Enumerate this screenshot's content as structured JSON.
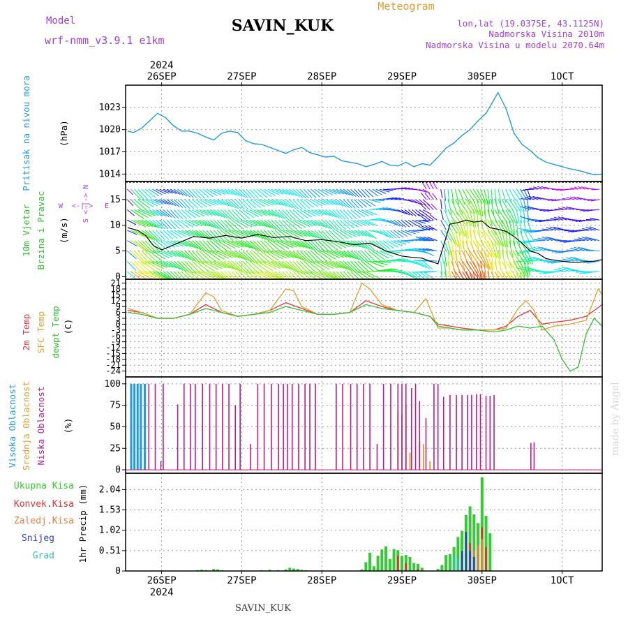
{
  "header": {
    "model_label": "Model",
    "model_value": "wrf-nmm_v3.9.1  e1km",
    "station": "SAVIN_KUK",
    "product": "Meteogram",
    "location": "lon,lat (19.0375E, 43.1125N)",
    "elevation": "Nadmorska Visina 2010m",
    "model_elevation": "Nadmorska Visina u modelu 2070.64m"
  },
  "footer": {
    "station": "SAVIN_KUK",
    "credit": "made by Angel"
  },
  "colors": {
    "pressure": "#1e9be0",
    "wind_speed": "#000000",
    "gust": "#e03030",
    "t2m": "#e83535",
    "tsfc": "#e0a030",
    "dewpt": "#30c030",
    "cloud_high": "#1e9be0",
    "cloud_mid": "#e0a030",
    "cloud_low": "#c01a8a",
    "precip_total": "#33cc33",
    "precip_conv": "#e03030",
    "precip_frozen": "#e88040",
    "precip_snow": "#3040c0",
    "precip_graupel": "#30c0b0",
    "header_purple": "#a040e0",
    "header_orange": "#e0a030"
  },
  "chart_data": [
    {
      "type": "line",
      "title": "Pritisak na nivou mora",
      "ylabel": "(hPa)",
      "ylim": [
        1013,
        1026
      ],
      "yticks": [
        1014,
        1017,
        1020,
        1023
      ],
      "x_days": [
        {
          "year": "2024",
          "label": "26SEP"
        },
        {
          "year": "",
          "label": "27SEP"
        },
        {
          "year": "",
          "label": "28SEP"
        },
        {
          "year": "",
          "label": "29SEP"
        },
        {
          "year": "",
          "label": "30SEP"
        },
        {
          "year": "",
          "label": "1OCT"
        }
      ],
      "series": [
        {
          "name": "Pritisak na nivou mora",
          "x": [
            25.58,
            25.65,
            25.75,
            25.85,
            25.95,
            26.05,
            26.15,
            26.25,
            26.35,
            26.45,
            26.55,
            26.65,
            26.75,
            26.85,
            26.95,
            27.05,
            27.15,
            27.25,
            27.35,
            27.45,
            27.55,
            27.65,
            27.75,
            27.85,
            27.95,
            28.05,
            28.15,
            28.25,
            28.35,
            28.45,
            28.55,
            28.65,
            28.75,
            28.85,
            28.95,
            29.05,
            29.15,
            29.25,
            29.35,
            29.45,
            29.55,
            29.65,
            29.75,
            29.85,
            29.95,
            30.05,
            30.12,
            30.2,
            30.3,
            30.4,
            30.5,
            30.6,
            30.7,
            30.8,
            30.9,
            31.0,
            31.1,
            31.2,
            31.3,
            31.4,
            31.5
          ],
          "y": [
            1019.8,
            1019.6,
            1020.2,
            1021.2,
            1022.2,
            1021.6,
            1020.5,
            1019.8,
            1019.8,
            1019.5,
            1019.0,
            1018.6,
            1019.5,
            1019.8,
            1019.6,
            1018.5,
            1018.1,
            1018.0,
            1017.6,
            1017.2,
            1016.8,
            1017.3,
            1017.6,
            1016.9,
            1016.6,
            1016.3,
            1016.4,
            1015.8,
            1015.6,
            1015.4,
            1015.0,
            1015.3,
            1015.7,
            1015.2,
            1015.1,
            1015.6,
            1015.0,
            1015.4,
            1015.2,
            1016.3,
            1017.5,
            1018.2,
            1019.2,
            1020.0,
            1021.2,
            1022.2,
            1023.5,
            1025.0,
            1022.8,
            1019.5,
            1018.0,
            1017.2,
            1016.2,
            1015.6,
            1015.3,
            1015.0,
            1014.7,
            1014.5,
            1014.2,
            1013.9,
            1014.0
          ]
        }
      ]
    },
    {
      "type": "line",
      "title": "10m Vjetar Brzina i Pravac",
      "ylabel": "(m/s)",
      "compass": {
        "n": "N",
        "s": "S",
        "w": "W",
        "e": "E"
      },
      "ylim": [
        -0.5,
        18.5
      ],
      "yticks": [
        0,
        5,
        10,
        15
      ],
      "series": [
        {
          "name": "Brzina",
          "x": [
            25.58,
            25.7,
            25.8,
            25.9,
            26.0,
            26.2,
            26.4,
            26.6,
            26.8,
            27.0,
            27.2,
            27.4,
            27.6,
            27.8,
            28.0,
            28.2,
            28.4,
            28.6,
            28.8,
            29.0,
            29.1,
            29.25,
            29.35,
            29.45,
            29.5,
            29.6,
            29.7,
            29.8,
            29.9,
            30.0,
            30.1,
            30.2,
            30.3,
            30.4,
            30.5,
            30.6,
            30.7,
            30.8,
            30.9,
            31.0,
            31.1,
            31.2,
            31.3,
            31.4,
            31.5
          ],
          "y": [
            9.5,
            9.0,
            8.0,
            6.0,
            5.2,
            6.5,
            7.8,
            7.5,
            8.0,
            7.5,
            8.2,
            7.6,
            7.8,
            7.0,
            7.2,
            6.8,
            6.2,
            6.5,
            5.0,
            4.0,
            3.8,
            3.6,
            3.0,
            2.5,
            5.0,
            10.2,
            10.5,
            11.0,
            10.6,
            10.8,
            9.5,
            9.2,
            8.8,
            7.8,
            6.5,
            5.0,
            4.5,
            3.5,
            3.2,
            3.0,
            2.8,
            2.8,
            2.9,
            3.0,
            3.3
          ]
        }
      ]
    },
    {
      "type": "line",
      "title": "2m Temp / SFC Temp / dewpt Temp",
      "ylabel": "(C)",
      "ylim": [
        -27,
        23
      ],
      "yticks": [
        -24,
        -21,
        -18,
        -15,
        -12,
        -9,
        -6,
        -3,
        0,
        3,
        6,
        9,
        12,
        15,
        18,
        21
      ],
      "series": [
        {
          "name": "2m Temp",
          "x": [
            25.58,
            25.75,
            25.95,
            26.15,
            26.35,
            26.55,
            26.75,
            26.95,
            27.15,
            27.35,
            27.55,
            27.75,
            27.95,
            28.15,
            28.35,
            28.55,
            28.75,
            28.95,
            29.15,
            29.35,
            29.45,
            29.6,
            29.75,
            29.95,
            30.15,
            30.3,
            30.45,
            30.6,
            30.75,
            30.9,
            31.1,
            31.3,
            31.5
          ],
          "y": [
            7,
            6,
            3,
            3,
            5,
            10,
            6,
            4,
            5,
            7,
            11,
            8,
            5,
            5,
            6,
            12,
            9,
            7,
            6,
            4,
            0,
            -1,
            -2,
            -3,
            -3,
            -1,
            4,
            7,
            0,
            1,
            2,
            4,
            10
          ]
        },
        {
          "name": "SFC Temp",
          "x": [
            25.58,
            25.75,
            25.95,
            26.15,
            26.35,
            26.55,
            26.65,
            26.75,
            26.95,
            27.15,
            27.35,
            27.55,
            27.65,
            27.75,
            27.95,
            28.15,
            28.35,
            28.5,
            28.6,
            28.75,
            28.95,
            29.15,
            29.3,
            29.45,
            29.6,
            29.75,
            29.95,
            30.15,
            30.3,
            30.45,
            30.55,
            30.65,
            30.75,
            30.9,
            31.1,
            31.3,
            31.45,
            31.5
          ],
          "y": [
            8,
            6,
            3,
            3,
            5,
            16,
            14,
            7,
            4,
            5,
            7,
            18,
            17,
            9,
            5,
            5,
            6,
            21,
            18,
            10,
            7,
            6,
            13,
            -2,
            -2,
            -3,
            -3,
            -3,
            -2,
            8,
            12,
            7,
            -3,
            -1,
            0,
            2,
            18,
            15
          ]
        },
        {
          "name": "dewpt Temp",
          "x": [
            25.58,
            25.75,
            25.95,
            26.15,
            26.35,
            26.55,
            26.75,
            26.95,
            27.15,
            27.35,
            27.55,
            27.75,
            27.95,
            28.15,
            28.35,
            28.55,
            28.75,
            28.95,
            29.15,
            29.35,
            29.45,
            29.6,
            29.75,
            29.95,
            30.15,
            30.3,
            30.45,
            30.6,
            30.75,
            30.9,
            31.0,
            31.1,
            31.2,
            31.3,
            31.4,
            31.5
          ],
          "y": [
            6,
            5,
            3,
            3,
            5,
            8,
            6,
            4,
            5,
            6,
            9,
            7,
            5,
            5,
            6,
            10,
            8,
            7,
            6,
            4,
            -1,
            -2,
            -3,
            -3,
            -4,
            -3,
            -1,
            -2,
            -1,
            -8,
            -18,
            -24,
            -22,
            -5,
            3,
            -1
          ]
        }
      ]
    },
    {
      "type": "bar",
      "title": "Visoka / Srednja / Niska Oblacnost",
      "ylabel": "(%)",
      "ylim": [
        -4,
        108
      ],
      "yticks": [
        0,
        25,
        50,
        75,
        100
      ],
      "series": [
        {
          "name": "Visoka Oblacnost",
          "x": [
            25.62,
            25.66,
            25.7,
            25.74,
            25.79
          ],
          "values": [
            100,
            100,
            100,
            100,
            100
          ]
        },
        {
          "name": "Srednja Oblacnost",
          "x": [
            28.95,
            29.0,
            29.05,
            29.1,
            29.22,
            29.27,
            29.35
          ],
          "values": [
            70,
            65,
            75,
            20,
            33,
            30,
            10
          ]
        },
        {
          "name": "Niska Oblacnost",
          "x": [
            25.84,
            25.92,
            25.99,
            26.02,
            26.2,
            26.28,
            26.36,
            26.42,
            26.51,
            26.6,
            26.68,
            26.76,
            26.84,
            26.92,
            26.98,
            27.11,
            27.2,
            27.28,
            27.37,
            27.46,
            27.52,
            27.57,
            27.63,
            27.71,
            27.79,
            27.85,
            27.92,
            28.18,
            28.26,
            28.36,
            28.44,
            28.52,
            28.6,
            28.69,
            28.77,
            28.86,
            28.95,
            29.0,
            29.05,
            29.12,
            29.17,
            29.22,
            29.3,
            29.4,
            29.45,
            29.52,
            29.6,
            29.68,
            29.75,
            29.82,
            29.87,
            29.93,
            29.98,
            30.05,
            30.1,
            30.15,
            30.61,
            30.65
          ],
          "values": [
            100,
            100,
            10,
            100,
            76,
            100,
            100,
            100,
            100,
            100,
            100,
            100,
            100,
            75,
            100,
            30,
            100,
            100,
            100,
            100,
            100,
            100,
            100,
            100,
            100,
            100,
            100,
            100,
            100,
            100,
            100,
            100,
            100,
            30,
            100,
            100,
            100,
            100,
            100,
            95,
            100,
            80,
            60,
            100,
            100,
            85,
            87,
            87,
            87,
            87,
            87,
            88,
            88,
            86,
            86,
            87,
            31,
            32
          ]
        }
      ]
    },
    {
      "type": "bar",
      "title": "1hr Precip",
      "ylabel": "1hr Precip (mm)",
      "ylim": [
        0,
        2.45
      ],
      "yticks": [
        0,
        0.51,
        1.02,
        1.53,
        2.04
      ],
      "legend": [
        "Ukupna Kisa",
        "Konvek.Kisa",
        "Zaledj.Kisa",
        "Snijeg",
        "Grad"
      ],
      "series": [
        {
          "name": "Ukupna Kisa",
          "x": [
            26.45,
            26.5,
            26.55,
            26.65,
            26.7,
            26.75,
            27.25,
            27.35,
            27.45,
            27.55,
            27.6,
            27.65,
            27.7,
            27.75,
            27.8,
            28.5,
            28.55,
            28.6,
            28.65,
            28.7,
            28.75,
            28.8,
            28.85,
            28.9,
            28.95,
            29.0,
            29.05,
            29.1,
            29.15,
            29.2,
            29.25,
            29.45,
            29.5,
            29.55,
            29.6,
            29.65,
            29.7,
            29.75,
            29.8,
            29.85,
            29.9,
            29.95,
            30.0,
            30.05,
            30.1
          ],
          "values": [
            0.02,
            0.03,
            0.02,
            0.05,
            0.04,
            0.02,
            0.02,
            0.03,
            0.02,
            0.04,
            0.08,
            0.06,
            0.05,
            0.03,
            0.02,
            0.04,
            0.22,
            0.46,
            0.12,
            0.38,
            0.54,
            0.62,
            0.3,
            0.55,
            0.52,
            0.38,
            0.4,
            0.35,
            0.2,
            0.18,
            0.08,
            0.05,
            0.15,
            0.4,
            0.42,
            0.6,
            0.85,
            1.0,
            1.4,
            1.62,
            1.42,
            1.2,
            2.35,
            1.38,
            0.95
          ]
        },
        {
          "name": "Konvek.Kisa",
          "x": [
            28.95,
            29.05,
            29.2,
            29.85,
            30.0,
            30.05
          ],
          "values": [
            0.38,
            0.2,
            0.05,
            0.7,
            1.1,
            0.6
          ]
        },
        {
          "name": "Zaledj.Kisa",
          "x": [
            29.9,
            29.95,
            30.0
          ],
          "values": [
            0.5,
            0.65,
            0.8
          ]
        },
        {
          "name": "Snijeg",
          "x": [
            29.75,
            29.8,
            29.85,
            29.9
          ],
          "values": [
            0.5,
            0.98,
            0.5,
            0.35
          ]
        },
        {
          "name": "Grad",
          "x": [
            29.65,
            29.7
          ],
          "values": [
            0.4,
            0.3
          ]
        }
      ]
    }
  ]
}
